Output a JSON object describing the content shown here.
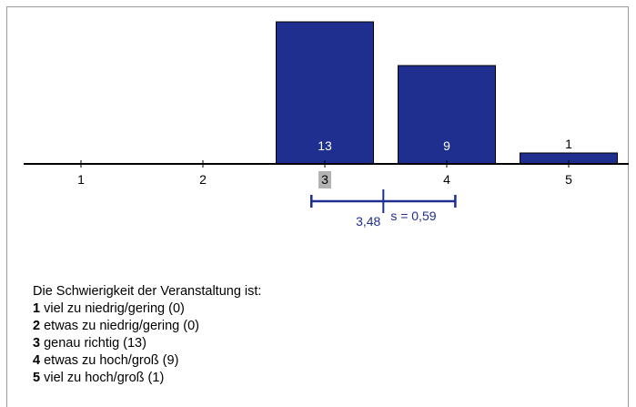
{
  "chart_data": {
    "type": "bar",
    "categories": [
      "1",
      "2",
      "3",
      "4",
      "5"
    ],
    "values": [
      0,
      0,
      13,
      9,
      1
    ],
    "ylim": [
      0,
      13
    ],
    "highlight_category": "3",
    "bar_color": "#1f2f8f",
    "highlight_label_bg": "#b3b3b3",
    "stats": {
      "mean": 3.48,
      "sd": 0.59,
      "mean_label": "3,48",
      "sd_label": "s = 0,59"
    }
  },
  "legend": {
    "question": "Die Schwierigkeit der Veranstaltung ist:",
    "items": [
      {
        "num": "1",
        "text": "viel zu  niedrig/gering (0)"
      },
      {
        "num": "2",
        "text": "etwas zu  niedrig/gering (0)"
      },
      {
        "num": "3",
        "text": "genau richtig (13)"
      },
      {
        "num": "4",
        "text": "etwas zu  hoch/groß (9)"
      },
      {
        "num": "5",
        "text": "viel zu  hoch/groß (1)"
      }
    ]
  }
}
